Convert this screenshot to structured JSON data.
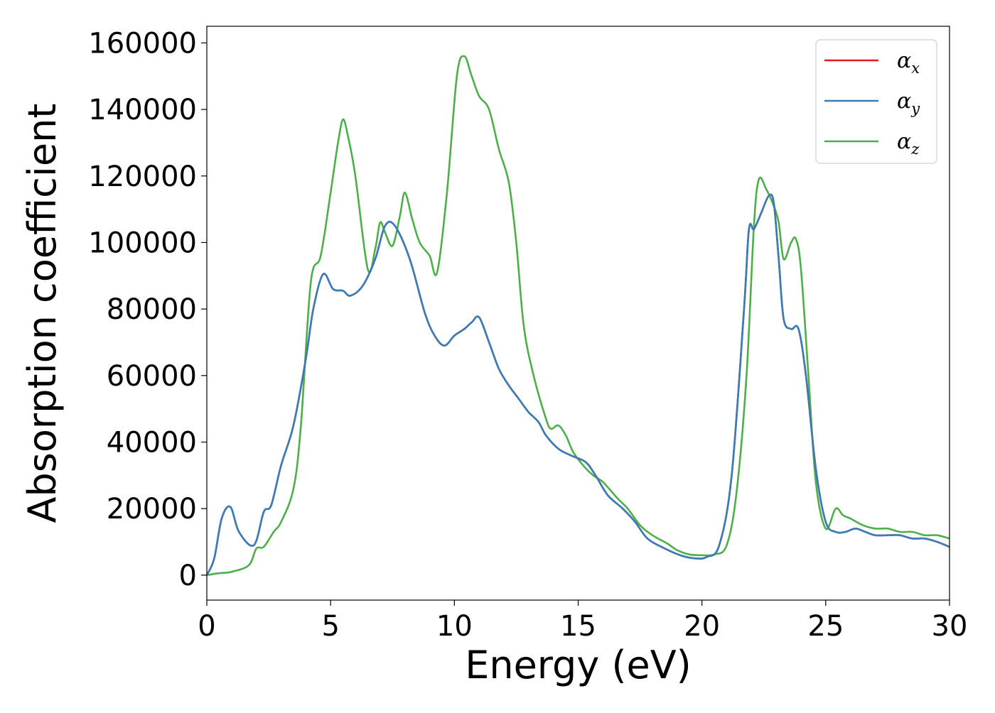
{
  "chart_data": {
    "type": "line",
    "title": "",
    "xlabel": "Energy (eV)",
    "ylabel": "Absorption coefficient",
    "xlim": [
      0,
      30
    ],
    "ylim": [
      -7500,
      165000
    ],
    "xticks": [
      0,
      5,
      10,
      15,
      20,
      25,
      30
    ],
    "yticks": [
      0,
      20000,
      40000,
      60000,
      80000,
      100000,
      120000,
      140000,
      160000
    ],
    "grid": false,
    "legend_position": "top-right",
    "colors": {
      "alpha_x": "#e41a1c",
      "alpha_y": "#377eb8",
      "alpha_z": "#4daf4a"
    },
    "series": [
      {
        "name": "α_x",
        "legend": {
          "base": "α",
          "sub": "x"
        },
        "color": "#e41a1c",
        "x": [
          0,
          0.3,
          0.6,
          0.95,
          1.3,
          1.9,
          2.3,
          2.6,
          3,
          3.5,
          4,
          4.3,
          4.7,
          5.1,
          5.5,
          5.8,
          6.3,
          6.8,
          7.2,
          7.6,
          8.2,
          8.8,
          9.2,
          9.6,
          10,
          10.4,
          10.7,
          11,
          11.4,
          11.8,
          12.2,
          12.6,
          13,
          13.4,
          13.7,
          14.2,
          14.7,
          15.3,
          15.7,
          16.2,
          16.8,
          17.3,
          17.8,
          18.5,
          19.2,
          19.8,
          20.2,
          20.7,
          21.2,
          21.7,
          21.9,
          22.1,
          22.4,
          22.7,
          22.9,
          23.1,
          23.3,
          23.6,
          23.9,
          24.2,
          24.6,
          25,
          25.4,
          25.8,
          26.2,
          26.6,
          27,
          27.5,
          28,
          28.5,
          29,
          29.5,
          30
        ],
        "y": [
          0,
          5000,
          17000,
          20500,
          13000,
          9000,
          19000,
          21000,
          33000,
          45000,
          65000,
          80000,
          90500,
          86000,
          85500,
          84000,
          87000,
          95000,
          105000,
          105000,
          95000,
          79000,
          72000,
          69000,
          72000,
          74000,
          76000,
          77500,
          70000,
          62000,
          57000,
          53000,
          49000,
          46000,
          42000,
          38000,
          36000,
          34000,
          30000,
          24000,
          20000,
          16000,
          11000,
          8000,
          5800,
          5000,
          5500,
          9000,
          30000,
          80000,
          104000,
          104000,
          109000,
          114000,
          112000,
          95000,
          77000,
          74000,
          74000,
          60000,
          32000,
          16000,
          13000,
          13000,
          14000,
          13000,
          12000,
          12000,
          12000,
          11000,
          11000,
          10000,
          8500
        ]
      },
      {
        "name": "α_y",
        "legend": {
          "base": "α",
          "sub": "y"
        },
        "color": "#377eb8",
        "x": [
          0,
          0.3,
          0.6,
          0.95,
          1.3,
          1.9,
          2.3,
          2.6,
          3,
          3.5,
          4,
          4.3,
          4.7,
          5.1,
          5.5,
          5.8,
          6.3,
          6.8,
          7.2,
          7.6,
          8.2,
          8.8,
          9.2,
          9.6,
          10,
          10.4,
          10.7,
          11,
          11.4,
          11.8,
          12.2,
          12.6,
          13,
          13.4,
          13.7,
          14.2,
          14.7,
          15.3,
          15.7,
          16.2,
          16.8,
          17.3,
          17.8,
          18.5,
          19.2,
          19.8,
          20.2,
          20.7,
          21.2,
          21.7,
          21.9,
          22.1,
          22.4,
          22.7,
          22.9,
          23.1,
          23.3,
          23.6,
          23.9,
          24.2,
          24.6,
          25,
          25.4,
          25.8,
          26.2,
          26.6,
          27,
          27.5,
          28,
          28.5,
          29,
          29.5,
          30
        ],
        "y": [
          0,
          5000,
          17000,
          20500,
          13000,
          9000,
          19000,
          21000,
          33000,
          45000,
          65000,
          80000,
          90500,
          86000,
          85500,
          84000,
          87000,
          95000,
          105000,
          105000,
          95000,
          79000,
          72000,
          69000,
          72000,
          74000,
          76000,
          77500,
          70000,
          62000,
          57000,
          53000,
          49000,
          46000,
          42000,
          38000,
          36000,
          34000,
          30000,
          24000,
          20000,
          16000,
          11000,
          8000,
          5800,
          5000,
          5500,
          9000,
          30000,
          80000,
          104000,
          104000,
          109000,
          114000,
          112000,
          95000,
          77000,
          74000,
          74000,
          60000,
          32000,
          16000,
          13000,
          13000,
          14000,
          13000,
          12000,
          12000,
          12000,
          11000,
          11000,
          10000,
          8500
        ]
      },
      {
        "name": "α_z",
        "legend": {
          "base": "α",
          "sub": "z"
        },
        "color": "#4daf4a",
        "x": [
          0,
          0.5,
          1,
          1.7,
          2,
          2.3,
          2.7,
          3,
          3.5,
          3.8,
          4.2,
          4.6,
          5,
          5.3,
          5.5,
          5.7,
          6,
          6.5,
          6.8,
          7,
          7.2,
          7.5,
          7.8,
          8,
          8.3,
          8.6,
          9,
          9.3,
          9.7,
          10.1,
          10.4,
          10.7,
          11,
          11.4,
          11.8,
          12.2,
          12.5,
          12.8,
          13.2,
          13.7,
          13.9,
          14.2,
          14.5,
          14.8,
          15.2,
          15.6,
          16,
          16.6,
          17,
          17.5,
          18,
          18.6,
          19,
          19.5,
          20,
          20.5,
          21,
          21.4,
          21.8,
          22.1,
          22.3,
          22.6,
          22.9,
          23.1,
          23.3,
          23.6,
          23.8,
          24,
          24.3,
          24.6,
          25,
          25.4,
          25.7,
          26,
          26.5,
          27,
          27.5,
          28,
          28.5,
          29,
          29.5,
          30
        ],
        "y": [
          0,
          600,
          1000,
          3000,
          8000,
          8500,
          13000,
          16000,
          26000,
          45000,
          88000,
          96000,
          115000,
          130000,
          137000,
          132000,
          120000,
          92000,
          98000,
          106000,
          103000,
          99000,
          108000,
          115000,
          107000,
          100000,
          96000,
          91000,
          115000,
          150000,
          156000,
          150000,
          144000,
          140000,
          128000,
          118000,
          100000,
          75000,
          60000,
          47000,
          44000,
          45000,
          42000,
          37000,
          33000,
          30000,
          28000,
          23000,
          20000,
          15000,
          12000,
          9500,
          7500,
          6200,
          6000,
          6200,
          9000,
          25000,
          60000,
          105000,
          119000,
          116000,
          111000,
          106000,
          95000,
          100000,
          101000,
          92000,
          60000,
          28000,
          14000,
          20000,
          18000,
          17000,
          15000,
          14000,
          14000,
          13000,
          13000,
          12000,
          12000,
          11000
        ]
      }
    ]
  }
}
